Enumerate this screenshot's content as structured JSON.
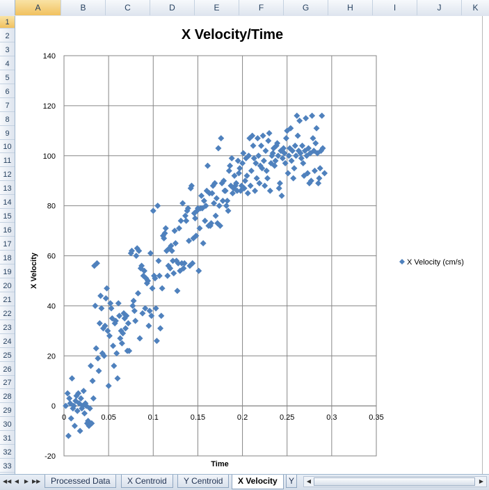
{
  "spreadsheet": {
    "columns": [
      "A",
      "B",
      "C",
      "D",
      "E",
      "F",
      "G",
      "H",
      "I",
      "J",
      "K"
    ],
    "active_column": "A",
    "rows": [
      "1",
      "2",
      "3",
      "4",
      "5",
      "6",
      "7",
      "8",
      "9",
      "10",
      "11",
      "12",
      "13",
      "14",
      "15",
      "16",
      "17",
      "18",
      "19",
      "20",
      "21",
      "22",
      "23",
      "24",
      "25",
      "26",
      "27",
      "28",
      "29",
      "30",
      "31",
      "32",
      "33"
    ],
    "active_row": "1"
  },
  "tabs": [
    {
      "label": "Processed Data",
      "active": false
    },
    {
      "label": "X Centroid",
      "active": false
    },
    {
      "label": "Y Centroid",
      "active": false
    },
    {
      "label": "X Velocity",
      "active": true
    },
    {
      "label": "Y",
      "active": false
    }
  ],
  "icons": {
    "first_sheet": "first-sheet-icon",
    "prev_sheet": "prev-sheet-icon",
    "next_sheet": "next-sheet-icon",
    "last_sheet": "last-sheet-icon"
  },
  "chart_data": {
    "type": "scatter",
    "title": "X Velocity/Time",
    "xlabel": "Time",
    "ylabel": "X Velocity",
    "xlim": [
      0,
      0.35
    ],
    "ylim": [
      -20,
      140
    ],
    "xticks": [
      "0",
      "0.05",
      "0.1",
      "0.15",
      "0.2",
      "0.25",
      "0.3",
      "0.35"
    ],
    "yticks": [
      "-20",
      "0",
      "20",
      "40",
      "60",
      "80",
      "100",
      "120",
      "140"
    ],
    "grid": true,
    "legend_position": "right",
    "marker": "diamond",
    "marker_color": "#4f81bd",
    "series": [
      {
        "name": "X Velocity (cm/s)",
        "points": [
          [
            0.002,
            0
          ],
          [
            0.004,
            5
          ],
          [
            0.005,
            -12
          ],
          [
            0.006,
            3
          ],
          [
            0.007,
            1
          ],
          [
            0.008,
            -5
          ],
          [
            0.009,
            11
          ],
          [
            0.01,
            -1
          ],
          [
            0.011,
            0
          ],
          [
            0.012,
            -8
          ],
          [
            0.013,
            2
          ],
          [
            0.014,
            4
          ],
          [
            0.015,
            -2
          ],
          [
            0.016,
            5
          ],
          [
            0.017,
            1
          ],
          [
            0.018,
            -10
          ],
          [
            0.019,
            3
          ],
          [
            0.02,
            -1
          ],
          [
            0.021,
            0
          ],
          [
            0.022,
            6
          ],
          [
            0.023,
            -3
          ],
          [
            0.024,
            1
          ],
          [
            0.025,
            0
          ],
          [
            0.026,
            -7
          ],
          [
            0.027,
            -6
          ],
          [
            0.028,
            -8
          ],
          [
            0.029,
            -1
          ],
          [
            0.03,
            16
          ],
          [
            0.031,
            -7
          ],
          [
            0.032,
            10
          ],
          [
            0.033,
            3
          ],
          [
            0.034,
            56
          ],
          [
            0.035,
            40
          ],
          [
            0.036,
            23
          ],
          [
            0.037,
            57
          ],
          [
            0.038,
            19
          ],
          [
            0.039,
            14
          ],
          [
            0.04,
            33
          ],
          [
            0.041,
            44
          ],
          [
            0.042,
            39
          ],
          [
            0.043,
            21
          ],
          [
            0.044,
            31
          ],
          [
            0.045,
            20
          ],
          [
            0.046,
            32
          ],
          [
            0.047,
            43
          ],
          [
            0.048,
            47
          ],
          [
            0.049,
            30
          ],
          [
            0.05,
            8
          ],
          [
            0.051,
            28
          ],
          [
            0.052,
            41
          ],
          [
            0.053,
            39
          ],
          [
            0.054,
            35
          ],
          [
            0.055,
            24
          ],
          [
            0.056,
            16
          ],
          [
            0.057,
            33
          ],
          [
            0.058,
            34
          ],
          [
            0.059,
            21
          ],
          [
            0.06,
            11
          ],
          [
            0.061,
            41
          ],
          [
            0.062,
            36
          ],
          [
            0.063,
            27
          ],
          [
            0.064,
            30
          ],
          [
            0.065,
            25
          ],
          [
            0.066,
            29
          ],
          [
            0.067,
            37
          ],
          [
            0.068,
            35
          ],
          [
            0.069,
            31
          ],
          [
            0.07,
            36
          ],
          [
            0.071,
            22
          ],
          [
            0.072,
            33
          ],
          [
            0.073,
            22
          ],
          [
            0.075,
            61
          ],
          [
            0.076,
            62
          ],
          [
            0.077,
            40
          ],
          [
            0.078,
            42
          ],
          [
            0.079,
            38
          ],
          [
            0.08,
            34
          ],
          [
            0.081,
            60
          ],
          [
            0.082,
            63
          ],
          [
            0.083,
            45
          ],
          [
            0.084,
            62
          ],
          [
            0.085,
            27
          ],
          [
            0.086,
            55
          ],
          [
            0.087,
            56
          ],
          [
            0.088,
            37
          ],
          [
            0.089,
            52
          ],
          [
            0.09,
            54
          ],
          [
            0.091,
            39
          ],
          [
            0.092,
            51
          ],
          [
            0.093,
            49
          ],
          [
            0.094,
            50
          ],
          [
            0.095,
            32
          ],
          [
            0.096,
            38
          ],
          [
            0.097,
            61
          ],
          [
            0.098,
            36
          ],
          [
            0.099,
            47
          ],
          [
            0.1,
            78
          ],
          [
            0.101,
            52
          ],
          [
            0.102,
            51
          ],
          [
            0.103,
            39
          ],
          [
            0.104,
            26
          ],
          [
            0.105,
            80
          ],
          [
            0.106,
            58
          ],
          [
            0.107,
            52
          ],
          [
            0.108,
            31
          ],
          [
            0.109,
            36
          ],
          [
            0.11,
            47
          ],
          [
            0.111,
            68
          ],
          [
            0.112,
            67
          ],
          [
            0.113,
            69
          ],
          [
            0.114,
            71
          ],
          [
            0.115,
            62
          ],
          [
            0.116,
            52
          ],
          [
            0.117,
            56
          ],
          [
            0.118,
            63
          ],
          [
            0.119,
            55
          ],
          [
            0.12,
            64
          ],
          [
            0.121,
            62
          ],
          [
            0.122,
            58
          ],
          [
            0.123,
            53
          ],
          [
            0.124,
            70
          ],
          [
            0.125,
            65
          ],
          [
            0.126,
            58
          ],
          [
            0.127,
            46
          ],
          [
            0.128,
            57
          ],
          [
            0.129,
            71
          ],
          [
            0.13,
            54
          ],
          [
            0.131,
            74
          ],
          [
            0.132,
            57
          ],
          [
            0.133,
            81
          ],
          [
            0.134,
            55
          ],
          [
            0.135,
            57
          ],
          [
            0.136,
            76
          ],
          [
            0.137,
            74
          ],
          [
            0.138,
            78
          ],
          [
            0.139,
            79
          ],
          [
            0.14,
            66
          ],
          [
            0.141,
            56
          ],
          [
            0.142,
            87
          ],
          [
            0.143,
            88
          ],
          [
            0.144,
            57
          ],
          [
            0.145,
            67
          ],
          [
            0.146,
            77
          ],
          [
            0.147,
            75
          ],
          [
            0.148,
            68
          ],
          [
            0.149,
            78
          ],
          [
            0.15,
            79
          ],
          [
            0.151,
            54
          ],
          [
            0.152,
            71
          ],
          [
            0.153,
            79
          ],
          [
            0.154,
            84
          ],
          [
            0.155,
            79
          ],
          [
            0.156,
            65
          ],
          [
            0.157,
            82
          ],
          [
            0.158,
            74
          ],
          [
            0.159,
            80
          ],
          [
            0.16,
            86
          ],
          [
            0.161,
            96
          ],
          [
            0.162,
            72
          ],
          [
            0.163,
            85
          ],
          [
            0.164,
            72
          ],
          [
            0.165,
            73
          ],
          [
            0.166,
            85
          ],
          [
            0.167,
            88
          ],
          [
            0.168,
            81
          ],
          [
            0.169,
            89
          ],
          [
            0.17,
            76
          ],
          [
            0.171,
            83
          ],
          [
            0.172,
            73
          ],
          [
            0.173,
            103
          ],
          [
            0.174,
            80
          ],
          [
            0.175,
            72
          ],
          [
            0.176,
            107
          ],
          [
            0.177,
            89
          ],
          [
            0.178,
            82
          ],
          [
            0.179,
            90
          ],
          [
            0.18,
            86
          ],
          [
            0.181,
            86
          ],
          [
            0.182,
            80
          ],
          [
            0.183,
            82
          ],
          [
            0.184,
            78
          ],
          [
            0.185,
            94
          ],
          [
            0.186,
            96
          ],
          [
            0.187,
            88
          ],
          [
            0.188,
            99
          ],
          [
            0.189,
            85
          ],
          [
            0.19,
            87
          ],
          [
            0.191,
            92
          ],
          [
            0.192,
            88
          ],
          [
            0.193,
            89
          ],
          [
            0.194,
            86
          ],
          [
            0.195,
            98
          ],
          [
            0.196,
            93
          ],
          [
            0.197,
            95
          ],
          [
            0.198,
            86
          ],
          [
            0.199,
            88
          ],
          [
            0.2,
            97
          ],
          [
            0.201,
            101
          ],
          [
            0.202,
            87
          ],
          [
            0.203,
            90
          ],
          [
            0.204,
            99
          ],
          [
            0.205,
            92
          ],
          [
            0.206,
            85
          ],
          [
            0.207,
            100
          ],
          [
            0.208,
            107
          ],
          [
            0.209,
            88
          ],
          [
            0.21,
            94
          ],
          [
            0.211,
            108
          ],
          [
            0.212,
            104
          ],
          [
            0.213,
            99
          ],
          [
            0.214,
            86
          ],
          [
            0.215,
            97
          ],
          [
            0.216,
            91
          ],
          [
            0.217,
            107
          ],
          [
            0.218,
            100
          ],
          [
            0.219,
            89
          ],
          [
            0.22,
            96
          ],
          [
            0.221,
            104
          ],
          [
            0.222,
            95
          ],
          [
            0.223,
            108
          ],
          [
            0.224,
            98
          ],
          [
            0.225,
            88
          ],
          [
            0.226,
            102
          ],
          [
            0.227,
            94
          ],
          [
            0.228,
            91
          ],
          [
            0.229,
            106
          ],
          [
            0.23,
            109
          ],
          [
            0.231,
            86
          ],
          [
            0.232,
            97
          ],
          [
            0.233,
            100
          ],
          [
            0.234,
            101
          ],
          [
            0.235,
            103
          ],
          [
            0.236,
            96
          ],
          [
            0.237,
            98
          ],
          [
            0.238,
            104
          ],
          [
            0.239,
            105
          ],
          [
            0.24,
            100
          ],
          [
            0.241,
            87
          ],
          [
            0.242,
            89
          ],
          [
            0.243,
            102
          ],
          [
            0.244,
            84
          ],
          [
            0.245,
            99
          ],
          [
            0.246,
            103
          ],
          [
            0.247,
            101
          ],
          [
            0.248,
            97
          ],
          [
            0.249,
            107
          ],
          [
            0.25,
            110
          ],
          [
            0.251,
            93
          ],
          [
            0.252,
            100
          ],
          [
            0.253,
            103
          ],
          [
            0.254,
            111
          ],
          [
            0.255,
            98
          ],
          [
            0.256,
            102
          ],
          [
            0.257,
            91
          ],
          [
            0.258,
            95
          ],
          [
            0.259,
            104
          ],
          [
            0.26,
            100
          ],
          [
            0.261,
            116
          ],
          [
            0.262,
            108
          ],
          [
            0.263,
            102
          ],
          [
            0.264,
            114
          ],
          [
            0.265,
            101
          ],
          [
            0.266,
            99
          ],
          [
            0.267,
            104
          ],
          [
            0.268,
            97
          ],
          [
            0.269,
            92
          ],
          [
            0.27,
            102
          ],
          [
            0.271,
            115
          ],
          [
            0.272,
            100
          ],
          [
            0.273,
            93
          ],
          [
            0.274,
            103
          ],
          [
            0.275,
            89
          ],
          [
            0.276,
            101
          ],
          [
            0.277,
            90
          ],
          [
            0.278,
            116
          ],
          [
            0.279,
            107
          ],
          [
            0.28,
            102
          ],
          [
            0.281,
            94
          ],
          [
            0.282,
            105
          ],
          [
            0.283,
            111
          ],
          [
            0.284,
            101
          ],
          [
            0.285,
            89
          ],
          [
            0.286,
            91
          ],
          [
            0.287,
            95
          ],
          [
            0.288,
            102
          ],
          [
            0.289,
            116
          ],
          [
            0.29,
            103
          ],
          [
            0.292,
            93
          ]
        ]
      }
    ]
  }
}
